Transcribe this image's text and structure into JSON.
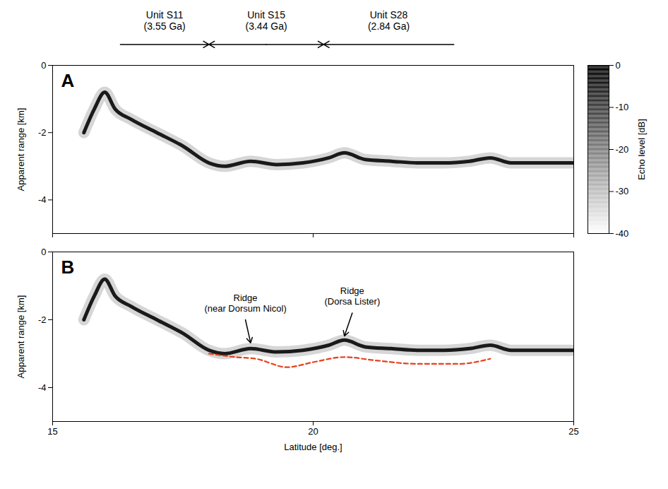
{
  "chart_data": {
    "type": "radargram",
    "xlim": [
      15,
      25
    ],
    "xticks": [
      15,
      20,
      25
    ],
    "xlabel": "Latitude [deg.]",
    "ylim": [
      -5,
      0
    ],
    "yticks": [
      0,
      -2,
      -4
    ],
    "ylabel": "Apparent range [km]",
    "units": [
      {
        "label": "Unit S11\n(3.55 Ga)",
        "from": 16.3,
        "to": 18.0
      },
      {
        "label": "Unit S15\n(3.44 Ga)",
        "from": 18.0,
        "to": 20.2
      },
      {
        "label": "Unit S28\n(2.84 Ga)",
        "from": 20.2,
        "to": 22.7
      }
    ],
    "colorbar": {
      "lim": [
        -40,
        0
      ],
      "ticks": [
        0,
        -10,
        -20,
        -30,
        -40
      ],
      "label": "Echo level [dB]"
    },
    "panels": [
      {
        "label": "A",
        "tick_labels": "y",
        "echo": {
          "color": "#1a1a1a",
          "x": [
            15.6,
            15.8,
            16.0,
            16.2,
            16.5,
            17.0,
            17.5,
            18.0,
            18.3,
            18.8,
            19.3,
            19.8,
            20.3,
            20.6,
            21.0,
            21.5,
            22.0,
            22.5,
            23.0,
            23.4,
            23.8,
            24.5,
            25.0
          ],
          "values": [
            -2.0,
            -1.3,
            -0.8,
            -1.3,
            -1.6,
            -2.0,
            -2.4,
            -2.9,
            -3.0,
            -2.85,
            -2.95,
            -2.9,
            -2.75,
            -2.6,
            -2.8,
            -2.85,
            -2.9,
            -2.9,
            -2.85,
            -2.75,
            -2.9,
            -2.9,
            -2.9
          ]
        }
      },
      {
        "label": "B",
        "tick_labels": true,
        "echo": {
          "color": "#1a1a1a",
          "x": [
            15.6,
            15.8,
            16.0,
            16.2,
            16.5,
            17.0,
            17.5,
            18.0,
            18.3,
            18.8,
            19.3,
            19.8,
            20.3,
            20.6,
            21.0,
            21.5,
            22.0,
            22.5,
            23.0,
            23.4,
            23.8,
            24.5,
            25.0
          ],
          "values": [
            -2.0,
            -1.3,
            -0.8,
            -1.3,
            -1.6,
            -2.0,
            -2.4,
            -2.9,
            -3.0,
            -2.85,
            -2.95,
            -2.9,
            -2.75,
            -2.6,
            -2.8,
            -2.85,
            -2.9,
            -2.9,
            -2.85,
            -2.75,
            -2.9,
            -2.9,
            -2.9
          ]
        },
        "reflector": {
          "color": "#e8401c",
          "line_style": "dashed",
          "x": [
            18.0,
            18.5,
            18.9,
            19.5,
            20.0,
            20.6,
            21.2,
            22.0,
            22.8,
            23.4
          ],
          "values": [
            -3.0,
            -3.1,
            -3.15,
            -3.4,
            -3.25,
            -3.1,
            -3.2,
            -3.3,
            -3.3,
            -3.15
          ]
        },
        "annotations": [
          {
            "text": "Ridge\n(near Dorsum Nicol)",
            "x": 18.8,
            "y": -2.8
          },
          {
            "text": "Ridge\n(Dorsa Lister)",
            "x": 20.6,
            "y": -2.6
          }
        ]
      }
    ]
  }
}
